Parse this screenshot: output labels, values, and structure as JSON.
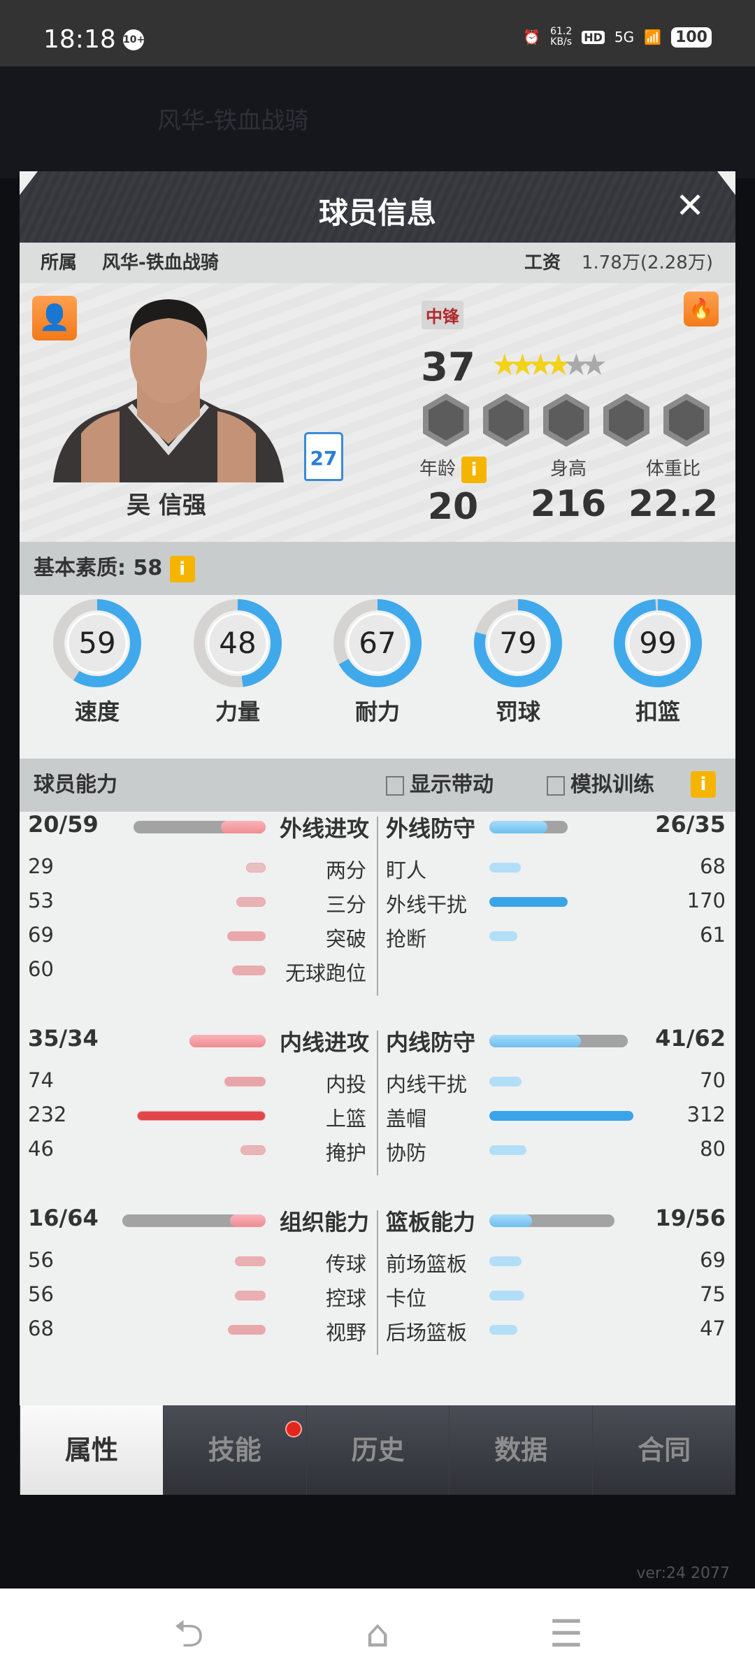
{
  "status_bar": {
    "time": "18:18",
    "notif_badge": "10+",
    "net_speed": "61.2",
    "net_unit": "KB/s",
    "hd": "HD",
    "signal": "5G",
    "battery": "100"
  },
  "background": {
    "team_name": "风华-铁血战骑",
    "version": "ver:24  2077"
  },
  "modal": {
    "title": "球员信息",
    "close_icon": "close-icon"
  },
  "info": {
    "team_label": "所属",
    "team": "风华-铁血战骑",
    "salary_label": "工资",
    "salary": "1.78万(2.28万)"
  },
  "player": {
    "name": "吴 信强",
    "jersey": "27",
    "position": "中锋",
    "rating": "37",
    "stars": 4.5,
    "stars_max": 6,
    "badges": 5,
    "bio": [
      {
        "label": "年龄",
        "value": "20"
      },
      {
        "label": "身高",
        "value": "216"
      },
      {
        "label": "体重比",
        "value": "22.2"
      }
    ]
  },
  "basic": {
    "title": "基本素质: 58",
    "info": "i",
    "attrs": [
      {
        "label": "速度",
        "value": 59
      },
      {
        "label": "力量",
        "value": 48
      },
      {
        "label": "耐力",
        "value": 67
      },
      {
        "label": "罚球",
        "value": 79
      },
      {
        "label": "扣篮",
        "value": 99
      }
    ]
  },
  "ability": {
    "title": "球员能力",
    "show_boost": "显示带动",
    "sim_training": "模拟训练",
    "info": "i"
  },
  "stats": [
    {
      "left": {
        "title": "外线进攻",
        "score": "20/59",
        "num": 20,
        "den": 59,
        "items": [
          {
            "label": "两分",
            "value": 29
          },
          {
            "label": "三分",
            "value": 53
          },
          {
            "label": "突破",
            "value": 69
          },
          {
            "label": "无球跑位",
            "value": 60
          }
        ]
      },
      "right": {
        "title": "外线防守",
        "score": "26/35",
        "num": 26,
        "den": 35,
        "items": [
          {
            "label": "盯人",
            "value": 68
          },
          {
            "label": "外线干扰",
            "value": 170
          },
          {
            "label": "抢断",
            "value": 61
          }
        ]
      }
    },
    {
      "left": {
        "title": "内线进攻",
        "score": "35/34",
        "num": 35,
        "den": 34,
        "items": [
          {
            "label": "内投",
            "value": 74
          },
          {
            "label": "上篮",
            "value": 232
          },
          {
            "label": "掩护",
            "value": 46
          }
        ]
      },
      "right": {
        "title": "内线防守",
        "score": "41/62",
        "num": 41,
        "den": 62,
        "items": [
          {
            "label": "内线干扰",
            "value": 70
          },
          {
            "label": "盖帽",
            "value": 312
          },
          {
            "label": "协防",
            "value": 80
          }
        ]
      }
    },
    {
      "left": {
        "title": "组织能力",
        "score": "16/64",
        "num": 16,
        "den": 64,
        "items": [
          {
            "label": "传球",
            "value": 56
          },
          {
            "label": "控球",
            "value": 56
          },
          {
            "label": "视野",
            "value": 68
          }
        ]
      },
      "right": {
        "title": "篮板能力",
        "score": "19/56",
        "num": 19,
        "den": 56,
        "items": [
          {
            "label": "前场篮板",
            "value": 69
          },
          {
            "label": "卡位",
            "value": 75
          },
          {
            "label": "后场篮板",
            "value": 47
          }
        ]
      }
    }
  ],
  "tabs": [
    {
      "label": "属性",
      "active": true
    },
    {
      "label": "技能",
      "dot": true
    },
    {
      "label": "历史"
    },
    {
      "label": "数据"
    },
    {
      "label": "合同"
    }
  ],
  "colors": {
    "offense": "#f07a80",
    "defense": "#3aa4e8",
    "ring": "#3fa9ec",
    "accent_orange": "#f27a1a",
    "info_yellow": "#f5b400"
  }
}
